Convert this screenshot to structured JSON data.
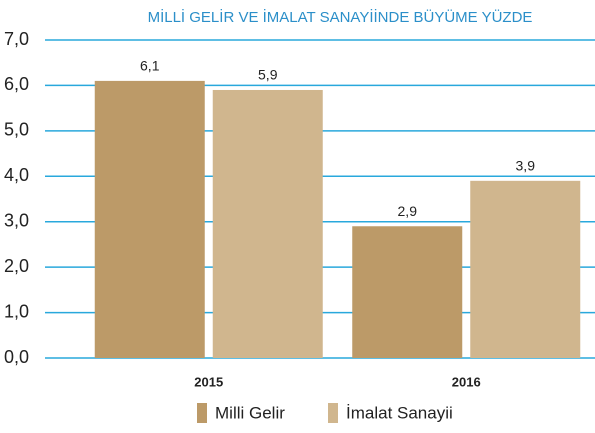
{
  "chart_data": {
    "type": "bar",
    "title": "MİLLİ GELİR VE İMALAT SANAYİİNDE BÜYÜME YÜZDE",
    "categories": [
      "2015",
      "2016"
    ],
    "series": [
      {
        "name": "Milli Gelir",
        "color": "#bc9a68",
        "values": [
          6.1,
          2.9
        ],
        "value_labels": [
          "6,1",
          "2,9"
        ]
      },
      {
        "name": "İmalat Sanayii",
        "color": "#d0b68e",
        "values": [
          5.9,
          3.9
        ],
        "value_labels": [
          "5,9",
          "3,9"
        ]
      }
    ],
    "ylim": [
      0,
      7
    ],
    "yticks": [
      {
        "value": 0,
        "label": "0,0"
      },
      {
        "value": 1,
        "label": "1,0"
      },
      {
        "value": 2,
        "label": "2,0"
      },
      {
        "value": 3,
        "label": "3,0"
      },
      {
        "value": 4,
        "label": "4,0"
      },
      {
        "value": 5,
        "label": "5,0"
      },
      {
        "value": 6,
        "label": "6,0"
      },
      {
        "value": 7,
        "label": "7,0"
      }
    ],
    "grid": true
  }
}
